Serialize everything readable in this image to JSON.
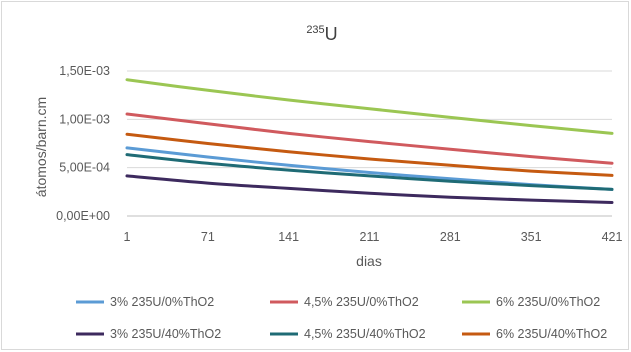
{
  "chart_data": {
    "type": "line",
    "title": {
      "superscript": "235",
      "main": "U"
    },
    "xlabel": "dias",
    "ylabel": "átomos/barn.cm",
    "xlim": [
      1,
      421
    ],
    "ylim": [
      0,
      0.0015
    ],
    "x_ticks": [
      "1",
      "71",
      "141",
      "211",
      "281",
      "351",
      "421"
    ],
    "x_tick_values": [
      1,
      71,
      141,
      211,
      281,
      351,
      421
    ],
    "y_ticks": [
      "0,00E+00",
      "5,00E-04",
      "1,00E-03",
      "1,50E-03"
    ],
    "y_tick_values": [
      0,
      0.0005,
      0.001,
      0.0015
    ],
    "grid": "horizontal",
    "legend_position": "bottom",
    "x": [
      1,
      71,
      141,
      211,
      281,
      351,
      421
    ],
    "series": [
      {
        "name": "3% 235U/0%ThO2",
        "color": "#5b9bd5",
        "values": [
          0.000705,
          0.00061,
          0.000525,
          0.00045,
          0.000385,
          0.000325,
          0.000275
        ]
      },
      {
        "name": "4,5% 235U/0%ThO2",
        "color": "#d05a5e",
        "values": [
          0.001055,
          0.000955,
          0.000855,
          0.00077,
          0.00069,
          0.000615,
          0.000545
        ]
      },
      {
        "name": "6% 235U/0%ThO2",
        "color": "#9bc653",
        "values": [
          0.00141,
          0.0013,
          0.0012,
          0.00111,
          0.00102,
          0.000935,
          0.000855
        ]
      },
      {
        "name": "3% 235U/40%ThO2",
        "color": "#3d2a5e",
        "values": [
          0.000415,
          0.00034,
          0.000285,
          0.000235,
          0.000195,
          0.000165,
          0.00014
        ]
      },
      {
        "name": "4,5% 235U/40%ThO2",
        "color": "#1f6b75",
        "values": [
          0.000635,
          0.000545,
          0.000475,
          0.000415,
          0.00036,
          0.000315,
          0.000275
        ]
      },
      {
        "name": "6% 235U/40%ThO2",
        "color": "#c55a11",
        "values": [
          0.000845,
          0.00075,
          0.000665,
          0.00059,
          0.000525,
          0.000465,
          0.00042
        ]
      }
    ]
  }
}
